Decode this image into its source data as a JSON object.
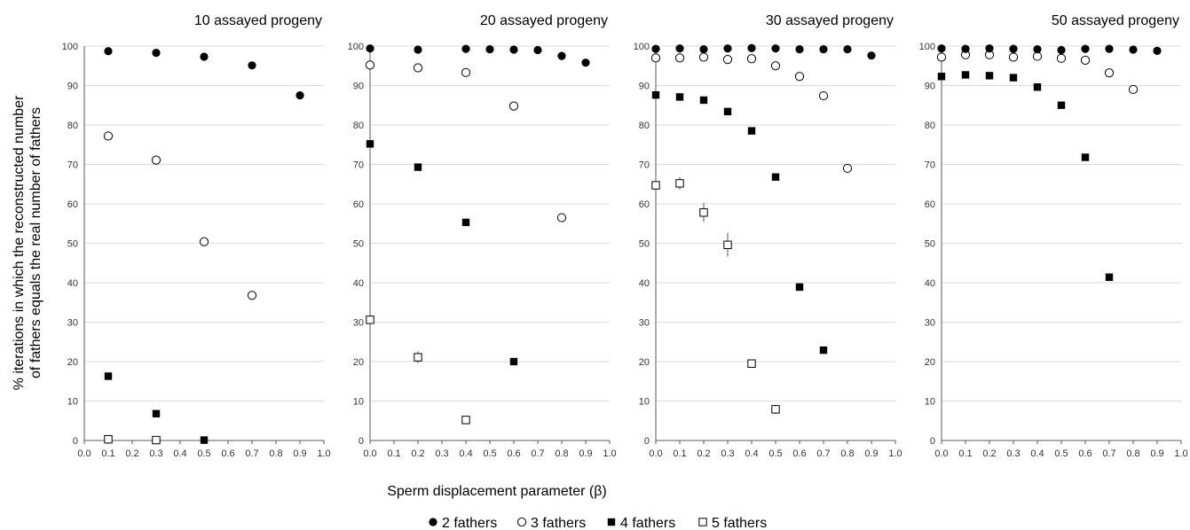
{
  "figure": {
    "y_axis_label_line1": "% iterations in which the reconstructed number",
    "y_axis_label_line2": "of fathers equals the real number of fathers",
    "x_axis_label": "Sperm displacement parameter  (β)"
  },
  "legend": [
    {
      "label": "2 fathers",
      "marker": "filled-circle"
    },
    {
      "label": "3 fathers",
      "marker": "open-circle"
    },
    {
      "label": "4 fathers",
      "marker": "filled-square"
    },
    {
      "label": "5 fathers",
      "marker": "open-square"
    }
  ],
  "chart_data": [
    {
      "type": "scatter",
      "title": "10 assayed progeny",
      "xlim": [
        0,
        1
      ],
      "ylim": [
        0,
        100
      ],
      "x_ticks": [
        "0.0",
        "0.1",
        "0.2",
        "0.3",
        "0.4",
        "0.5",
        "0.6",
        "0.7",
        "0.8",
        "0.9",
        "1.0"
      ],
      "y_ticks": [
        "0",
        "10",
        "20",
        "30",
        "40",
        "50",
        "60",
        "70",
        "80",
        "90",
        "100"
      ],
      "grid": "horizontal",
      "series": [
        {
          "name": "2 fathers",
          "marker": "filled-circle",
          "points": [
            [
              0.1,
              98.7
            ],
            [
              0.3,
              98.3
            ],
            [
              0.5,
              97.3
            ],
            [
              0.7,
              95.1
            ],
            [
              0.9,
              87.5
            ]
          ]
        },
        {
          "name": "3 fathers",
          "marker": "open-circle",
          "points": [
            [
              0.1,
              77.2
            ],
            [
              0.3,
              71.1
            ],
            [
              0.5,
              50.4
            ],
            [
              0.7,
              36.8
            ]
          ]
        },
        {
          "name": "4 fathers",
          "marker": "filled-square",
          "points": [
            [
              0.1,
              16.3
            ],
            [
              0.3,
              6.8
            ],
            [
              0.5,
              0.1
            ]
          ]
        },
        {
          "name": "5 fathers",
          "marker": "open-square",
          "points": [
            [
              0.1,
              0.3
            ],
            [
              0.3,
              0.1
            ]
          ]
        }
      ]
    },
    {
      "type": "scatter",
      "title": "20 assayed progeny",
      "xlim": [
        0,
        1
      ],
      "ylim": [
        0,
        100
      ],
      "x_ticks": [
        "0.0",
        "0.1",
        "0.2",
        "0.3",
        "0.4",
        "0.5",
        "0.6",
        "0.7",
        "0.8",
        "0.9",
        "1.0"
      ],
      "y_ticks": [
        "0",
        "10",
        "20",
        "30",
        "40",
        "50",
        "60",
        "70",
        "80",
        "90",
        "100"
      ],
      "grid": "horizontal",
      "series": [
        {
          "name": "2 fathers",
          "marker": "filled-circle",
          "points": [
            [
              0.0,
              99.4
            ],
            [
              0.2,
              99.1
            ],
            [
              0.4,
              99.3
            ],
            [
              0.5,
              99.2
            ],
            [
              0.6,
              99.1
            ],
            [
              0.7,
              99.0
            ],
            [
              0.8,
              97.5
            ],
            [
              0.9,
              95.8
            ]
          ]
        },
        {
          "name": "3 fathers",
          "marker": "open-circle",
          "points": [
            [
              0.0,
              95.2
            ],
            [
              0.2,
              94.5
            ],
            [
              0.4,
              93.3
            ],
            [
              0.6,
              84.8
            ],
            [
              0.8,
              56.5
            ]
          ]
        },
        {
          "name": "4 fathers",
          "marker": "filled-square",
          "points": [
            [
              0.0,
              75.2
            ],
            [
              0.2,
              69.3
            ],
            [
              0.4,
              55.3
            ],
            [
              0.6,
              20.0
            ]
          ]
        },
        {
          "name": "5 fathers",
          "marker": "open-square",
          "points": [
            [
              0.0,
              30.6,
              0
            ],
            [
              0.2,
              21.1,
              1.5
            ],
            [
              0.4,
              5.2,
              0
            ]
          ]
        }
      ]
    },
    {
      "type": "scatter",
      "title": "30 assayed progeny",
      "xlim": [
        0,
        1
      ],
      "ylim": [
        0,
        100
      ],
      "x_ticks": [
        "0.0",
        "0.1",
        "0.2",
        "0.3",
        "0.4",
        "0.5",
        "0.6",
        "0.7",
        "0.8",
        "0.9",
        "1.0"
      ],
      "y_ticks": [
        "0",
        "10",
        "20",
        "30",
        "40",
        "50",
        "60",
        "70",
        "80",
        "90",
        "100"
      ],
      "grid": "horizontal",
      "series": [
        {
          "name": "2 fathers",
          "marker": "filled-circle",
          "points": [
            [
              0.0,
              99.3
            ],
            [
              0.1,
              99.4
            ],
            [
              0.2,
              99.2
            ],
            [
              0.3,
              99.4
            ],
            [
              0.4,
              99.5
            ],
            [
              0.5,
              99.4
            ],
            [
              0.6,
              99.2
            ],
            [
              0.7,
              99.2
            ],
            [
              0.8,
              99.2
            ],
            [
              0.9,
              97.6
            ]
          ]
        },
        {
          "name": "3 fathers",
          "marker": "open-circle",
          "points": [
            [
              0.0,
              97.0
            ],
            [
              0.1,
              97.0
            ],
            [
              0.2,
              97.2
            ],
            [
              0.3,
              96.6
            ],
            [
              0.4,
              96.8
            ],
            [
              0.5,
              95.0
            ],
            [
              0.6,
              92.3
            ],
            [
              0.7,
              87.4
            ],
            [
              0.8,
              69.0
            ]
          ]
        },
        {
          "name": "4 fathers",
          "marker": "filled-square",
          "points": [
            [
              0.0,
              87.6
            ],
            [
              0.1,
              87.1
            ],
            [
              0.2,
              86.3
            ],
            [
              0.3,
              83.4
            ],
            [
              0.4,
              78.5
            ],
            [
              0.5,
              66.8
            ],
            [
              0.6,
              38.9
            ],
            [
              0.7,
              22.9
            ]
          ]
        },
        {
          "name": "5 fathers",
          "marker": "open-square",
          "points": [
            [
              0.0,
              64.7,
              0
            ],
            [
              0.1,
              65.2,
              1.6
            ],
            [
              0.2,
              57.8,
              2.4
            ],
            [
              0.3,
              49.6,
              3.0
            ],
            [
              0.4,
              19.5,
              0
            ],
            [
              0.5,
              7.9,
              1.2
            ]
          ]
        }
      ]
    },
    {
      "type": "scatter",
      "title": "50 assayed progeny",
      "xlim": [
        0,
        1
      ],
      "ylim": [
        0,
        100
      ],
      "x_ticks": [
        "0.0",
        "0.1",
        "0.2",
        "0.3",
        "0.4",
        "0.5",
        "0.6",
        "0.7",
        "0.8",
        "0.9",
        "1.0"
      ],
      "y_ticks": [
        "0",
        "10",
        "20",
        "30",
        "40",
        "50",
        "60",
        "70",
        "80",
        "90",
        "100"
      ],
      "grid": "horizontal",
      "series": [
        {
          "name": "2 fathers",
          "marker": "filled-circle",
          "points": [
            [
              0.0,
              99.4
            ],
            [
              0.1,
              99.3
            ],
            [
              0.2,
              99.4
            ],
            [
              0.3,
              99.3
            ],
            [
              0.4,
              99.2
            ],
            [
              0.5,
              99.0
            ],
            [
              0.6,
              99.3
            ],
            [
              0.7,
              99.3
            ],
            [
              0.8,
              99.1
            ],
            [
              0.9,
              98.8
            ]
          ]
        },
        {
          "name": "3 fathers",
          "marker": "open-circle",
          "points": [
            [
              0.0,
              97.2
            ],
            [
              0.1,
              97.8
            ],
            [
              0.2,
              97.8
            ],
            [
              0.3,
              97.2
            ],
            [
              0.4,
              97.4
            ],
            [
              0.5,
              96.9
            ],
            [
              0.6,
              96.4
            ],
            [
              0.7,
              93.2
            ],
            [
              0.8,
              89.0
            ]
          ]
        },
        {
          "name": "4 fathers",
          "marker": "filled-square",
          "points": [
            [
              0.0,
              92.3
            ],
            [
              0.1,
              92.7
            ],
            [
              0.2,
              92.5
            ],
            [
              0.3,
              92.0
            ],
            [
              0.4,
              89.6
            ],
            [
              0.5,
              85.0
            ],
            [
              0.6,
              71.8
            ],
            [
              0.7,
              41.4
            ]
          ]
        },
        {
          "name": "5 fathers",
          "marker": "open-square",
          "points": []
        }
      ]
    }
  ]
}
